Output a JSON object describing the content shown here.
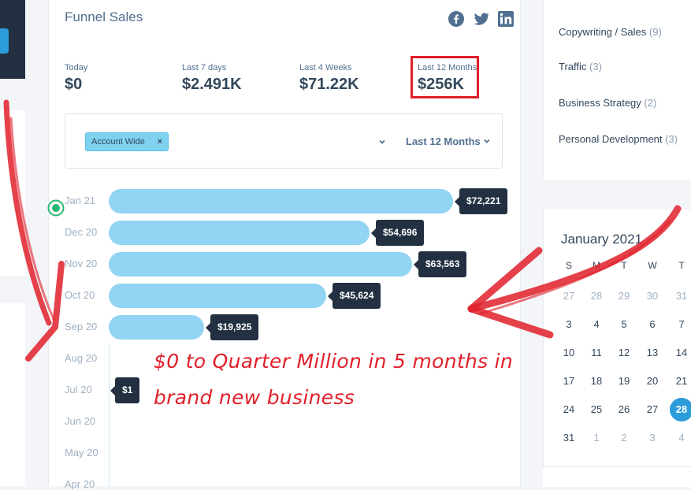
{
  "card": {
    "title": "Funnel Sales"
  },
  "social": [
    "facebook-icon",
    "twitter-icon",
    "linkedin-icon"
  ],
  "stats": [
    {
      "label": "Today",
      "value": "$0"
    },
    {
      "label": "Last 7 days",
      "value": "$2.491K"
    },
    {
      "label": "Last 4 Weeks",
      "value": "$71.22K"
    },
    {
      "label": "Last 12 Months",
      "value": "$256K"
    }
  ],
  "filter": {
    "tag": "Account Wide",
    "tag_remove": "×",
    "period": "Last 12 Months"
  },
  "sales_rows": [
    {
      "month": "Jan 21",
      "value": "$72,221",
      "amount": 72221
    },
    {
      "month": "Dec 20",
      "value": "$54,696",
      "amount": 54696
    },
    {
      "month": "Nov 20",
      "value": "$63,563",
      "amount": 63563
    },
    {
      "month": "Oct 20",
      "value": "$45,624",
      "amount": 45624
    },
    {
      "month": "Sep 20",
      "value": "$19,925",
      "amount": 19925
    },
    {
      "month": "Aug 20",
      "value": "",
      "amount": 0
    },
    {
      "month": "Jul 20",
      "value": "$1",
      "amount": 1
    },
    {
      "month": "Jun 20",
      "value": "",
      "amount": 0
    },
    {
      "month": "May 20",
      "value": "",
      "amount": 0
    },
    {
      "month": "Apr 20",
      "value": "",
      "amount": 0
    }
  ],
  "categories": [
    {
      "name": "Copywriting / Sales",
      "count": "(9)"
    },
    {
      "name": "Traffic",
      "count": "(3)"
    },
    {
      "name": "Business Strategy",
      "count": "(2)"
    },
    {
      "name": "Personal Development",
      "count": "(3)"
    }
  ],
  "calendar": {
    "title": "January 2021",
    "weekdays": [
      "S",
      "M",
      "T",
      "W",
      "T"
    ],
    "weeks": [
      [
        "27",
        "28",
        "29",
        "30",
        "31"
      ],
      [
        "3",
        "4",
        "5",
        "6",
        "7"
      ],
      [
        "10",
        "11",
        "12",
        "13",
        "14"
      ],
      [
        "17",
        "18",
        "19",
        "20",
        "21"
      ],
      [
        "24",
        "25",
        "26",
        "27",
        "28"
      ],
      [
        "31",
        "1",
        "2",
        "3",
        "4"
      ]
    ],
    "today": "28"
  },
  "annotation": {
    "line1": "$0 to Quarter Million in 5 months in",
    "line2": "brand new business"
  },
  "colors": {
    "accent": "#2d9cdb",
    "bar": "#92d4f3",
    "tooltip": "#223041",
    "annotation_red": "#e0202a"
  }
}
